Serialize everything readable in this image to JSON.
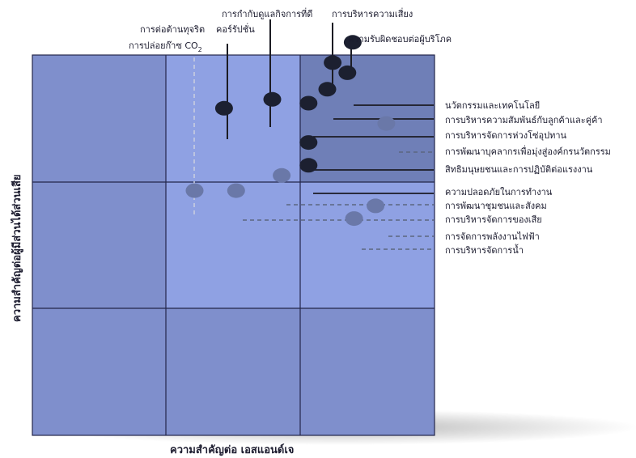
{
  "chart_data": {
    "type": "scatter",
    "title": "",
    "xlabel": "ความสำคัญต่อ เอสแอนด์เจ",
    "ylabel": "ความสำคัญต่อผู้มีส่วนได้ส่วนเสีย",
    "xlim": [
      0,
      3
    ],
    "ylim": [
      0,
      3
    ],
    "grid": "3x3 materiality matrix",
    "colors": {
      "quadrant_low": "#7f8fcc",
      "quadrant_mid": "#8fa1e3",
      "quadrant_high": "#6f7fb7",
      "grid_line": "#23264a",
      "point_material": "#1c2030",
      "point_minor": "#6a78a8",
      "leader_solid": "#1c1c24",
      "leader_dashed": "#5c6780"
    },
    "points": [
      {
        "label": "การต่อต้านทุจริต",
        "x": 1.43,
        "y": 2.58,
        "emphasis": "high"
      },
      {
        "label": "การกำกับดูแลกิจการที่ดี",
        "x": 1.79,
        "y": 2.65,
        "emphasis": "high"
      },
      {
        "label": "คอร์รัปชั่น",
        "x": 1.79,
        "y": 2.65,
        "emphasis": "high"
      },
      {
        "label": "การบริหารความเสี่ยง",
        "x": 2.24,
        "y": 2.94,
        "emphasis": "high"
      },
      {
        "label": "ความรับผิดชอบต่อผู้บริโภค",
        "x": 2.39,
        "y": 3.1,
        "emphasis": "high"
      },
      {
        "label": "นวัตกรรมและเทคโนโลยี",
        "x": 2.35,
        "y": 2.86,
        "emphasis": "high"
      },
      {
        "label": "การบริหารความสัมพันธ์กับลูกค้าและคู่ค้า",
        "x": 2.2,
        "y": 2.73,
        "emphasis": "high"
      },
      {
        "label": "การบริหารจัดการห่วงโซ่อุปทาน",
        "x": 2.06,
        "y": 2.62,
        "emphasis": "high"
      },
      {
        "label": "การพัฒนาบุคลากรเพื่อมุ่งสู่องค์กรนวัตกรรม",
        "x": 2.64,
        "y": 2.46,
        "emphasis": "low"
      },
      {
        "label": "สิทธิมนุษยชนและการปฏิบัติต่อแรงงาน",
        "x": 2.06,
        "y": 2.31,
        "emphasis": "high"
      },
      {
        "label": "ความปลอดภัยในการทำงาน",
        "x": 2.06,
        "y": 2.13,
        "emphasis": "high"
      },
      {
        "label": "การพัฒนาชุมชนและสังคม",
        "x": 1.86,
        "y": 2.05,
        "emphasis": "low"
      },
      {
        "label": "การปล่อยก๊าซ CO2",
        "x": 1.21,
        "y": 1.93,
        "emphasis": "low"
      },
      {
        "label": "การบริหารจัดการของเสีย",
        "x": 1.52,
        "y": 1.93,
        "emphasis": "low"
      },
      {
        "label": "การจัดการพลังงานไฟฟ้า",
        "x": 2.56,
        "y": 1.81,
        "emphasis": "low"
      },
      {
        "label": "การบริหารจัดการน้ำ",
        "x": 2.4,
        "y": 1.71,
        "emphasis": "low"
      }
    ]
  },
  "labels": {
    "anti_corruption": "การต่อต้านทุจริต",
    "co2_prefix": "การปล่อยก๊าซ CO",
    "co2_sub": "2",
    "governance": "การกำกับดูแลกิจการที่ดี",
    "corruption": "คอร์รัปชั่น",
    "risk": "การบริหารความเสี่ยง",
    "consumer": "ความรับผิดชอบต่อผู้บริโภค",
    "innovation": "นวัตกรรมและเทคโนโลยี",
    "customer": "การบริหารความสัมพันธ์กับลูกค้าและคู่ค้า",
    "supply": "การบริหารจัดการห่วงโซ่อุปทาน",
    "people": "การพัฒนาบุคลากรเพื่อมุ่งสู่องค์กรนวัตกรรม",
    "rights": "สิทธิมนุษยชนและการปฏิบัติต่อแรงงาน",
    "safety": "ความปลอดภัยในการทำงาน",
    "community": "การพัฒนาชุมชนและสังคม",
    "waste": "การบริหารจัดการของเสีย",
    "energy": "การจัดการพลังงานไฟฟ้า",
    "water": "การบริหารจัดการน้ำ"
  }
}
